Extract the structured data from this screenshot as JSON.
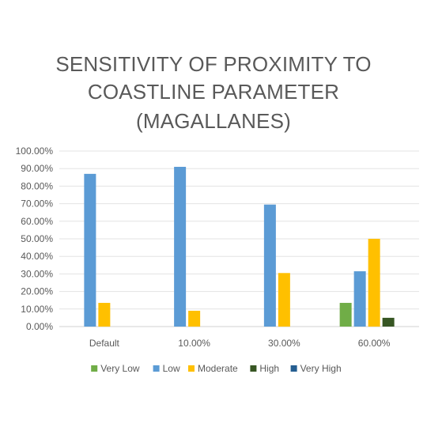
{
  "chart_data": {
    "type": "bar",
    "title_lines": [
      "SENSITIVITY OF PROXIMITY TO",
      "COASTLINE PARAMETER",
      "(MAGALLANES)"
    ],
    "categories": [
      "Default",
      "10.00%",
      "30.00%",
      "60.00%"
    ],
    "series": [
      {
        "name": "Very Low",
        "color": "#70AD47",
        "values": [
          0,
          0,
          0,
          13.5
        ]
      },
      {
        "name": "Low",
        "color": "#5B9BD5",
        "values": [
          87,
          91,
          69.5,
          31.5
        ]
      },
      {
        "name": "Moderate",
        "color": "#FFC000",
        "values": [
          13.5,
          9,
          30.5,
          50
        ]
      },
      {
        "name": "High",
        "color": "#375623",
        "values": [
          0,
          0,
          0,
          5
        ]
      },
      {
        "name": "Very High",
        "color": "#255E91",
        "values": [
          0,
          0,
          0,
          0
        ]
      }
    ],
    "ylim": [
      0,
      100
    ],
    "yticks": [
      "0.00%",
      "10.00%",
      "20.00%",
      "30.00%",
      "40.00%",
      "50.00%",
      "60.00%",
      "70.00%",
      "80.00%",
      "90.00%",
      "100.00%"
    ],
    "grid": true,
    "legend_position": "bottom"
  }
}
